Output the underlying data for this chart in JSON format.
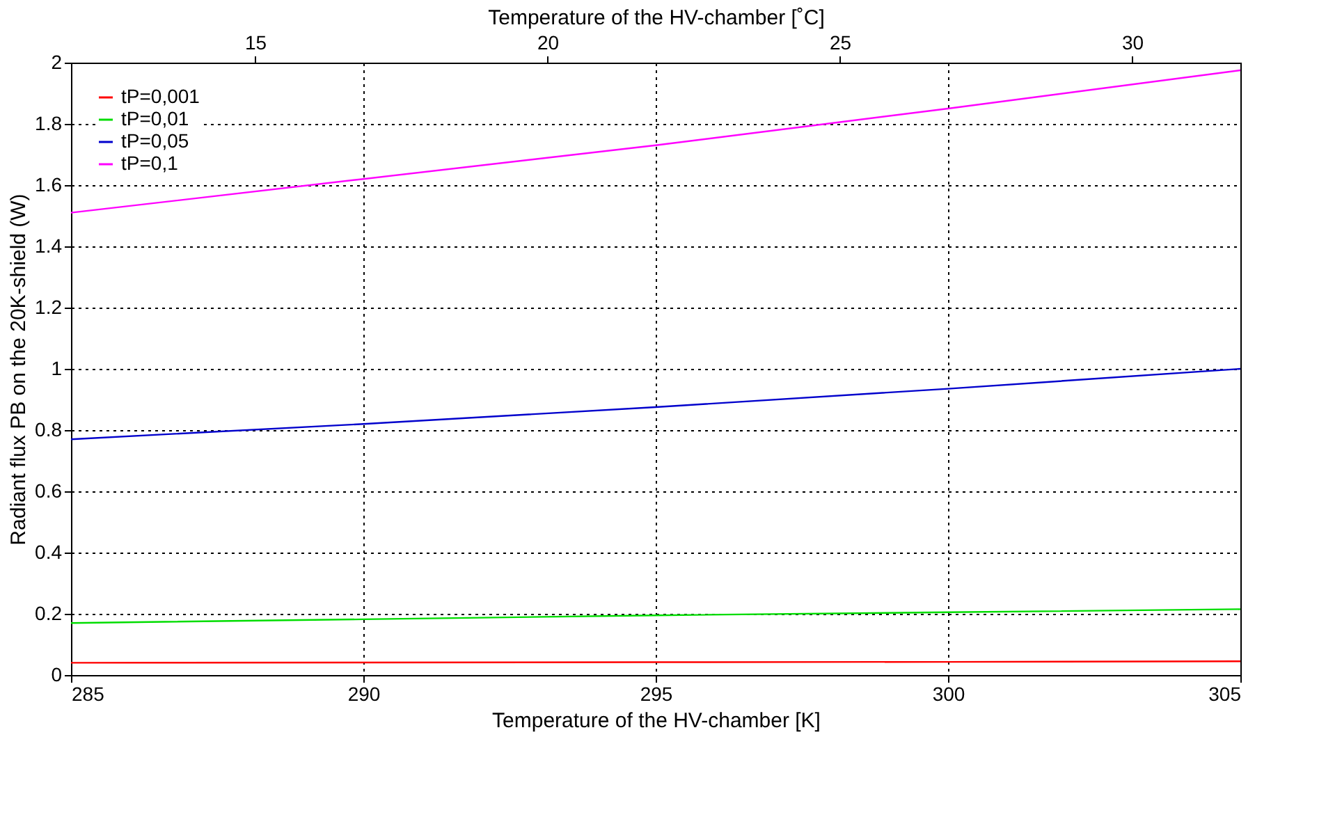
{
  "chart_data": {
    "type": "line",
    "xlabel": "Temperature of the HV-chamber [K]",
    "x2label": "Temperature of the HV-chamber [˚C]",
    "ylabel": "Radiant flux PB on the 20K-shield (W)",
    "x": [
      285,
      290,
      295,
      300,
      305
    ],
    "series": [
      {
        "name": "tP=0,001",
        "color": "#ff0000",
        "values": [
          0.04,
          0.041,
          0.042,
          0.043,
          0.045
        ]
      },
      {
        "name": "tP=0,01",
        "color": "#00dd00",
        "values": [
          0.17,
          0.182,
          0.195,
          0.205,
          0.215
        ]
      },
      {
        "name": "tP=0,05",
        "color": "#0000cc",
        "values": [
          0.77,
          0.82,
          0.875,
          0.935,
          1.0
        ]
      },
      {
        "name": "tP=0,1",
        "color": "#ff00ff",
        "values": [
          1.51,
          1.62,
          1.73,
          1.85,
          1.975
        ]
      }
    ],
    "xlim": [
      285,
      305
    ],
    "xticks": [
      285,
      290,
      295,
      300,
      305
    ],
    "x2lim": [
      11.85,
      31.85
    ],
    "x2ticks": [
      15,
      20,
      25,
      30
    ],
    "ylim": [
      0,
      2
    ],
    "yticks": [
      0,
      0.2,
      0.4,
      0.6,
      0.8,
      1,
      1.2,
      1.4,
      1.6,
      1.8,
      2
    ],
    "grid": true,
    "legend": "top left",
    "marker": "none",
    "line_style": "solid"
  }
}
